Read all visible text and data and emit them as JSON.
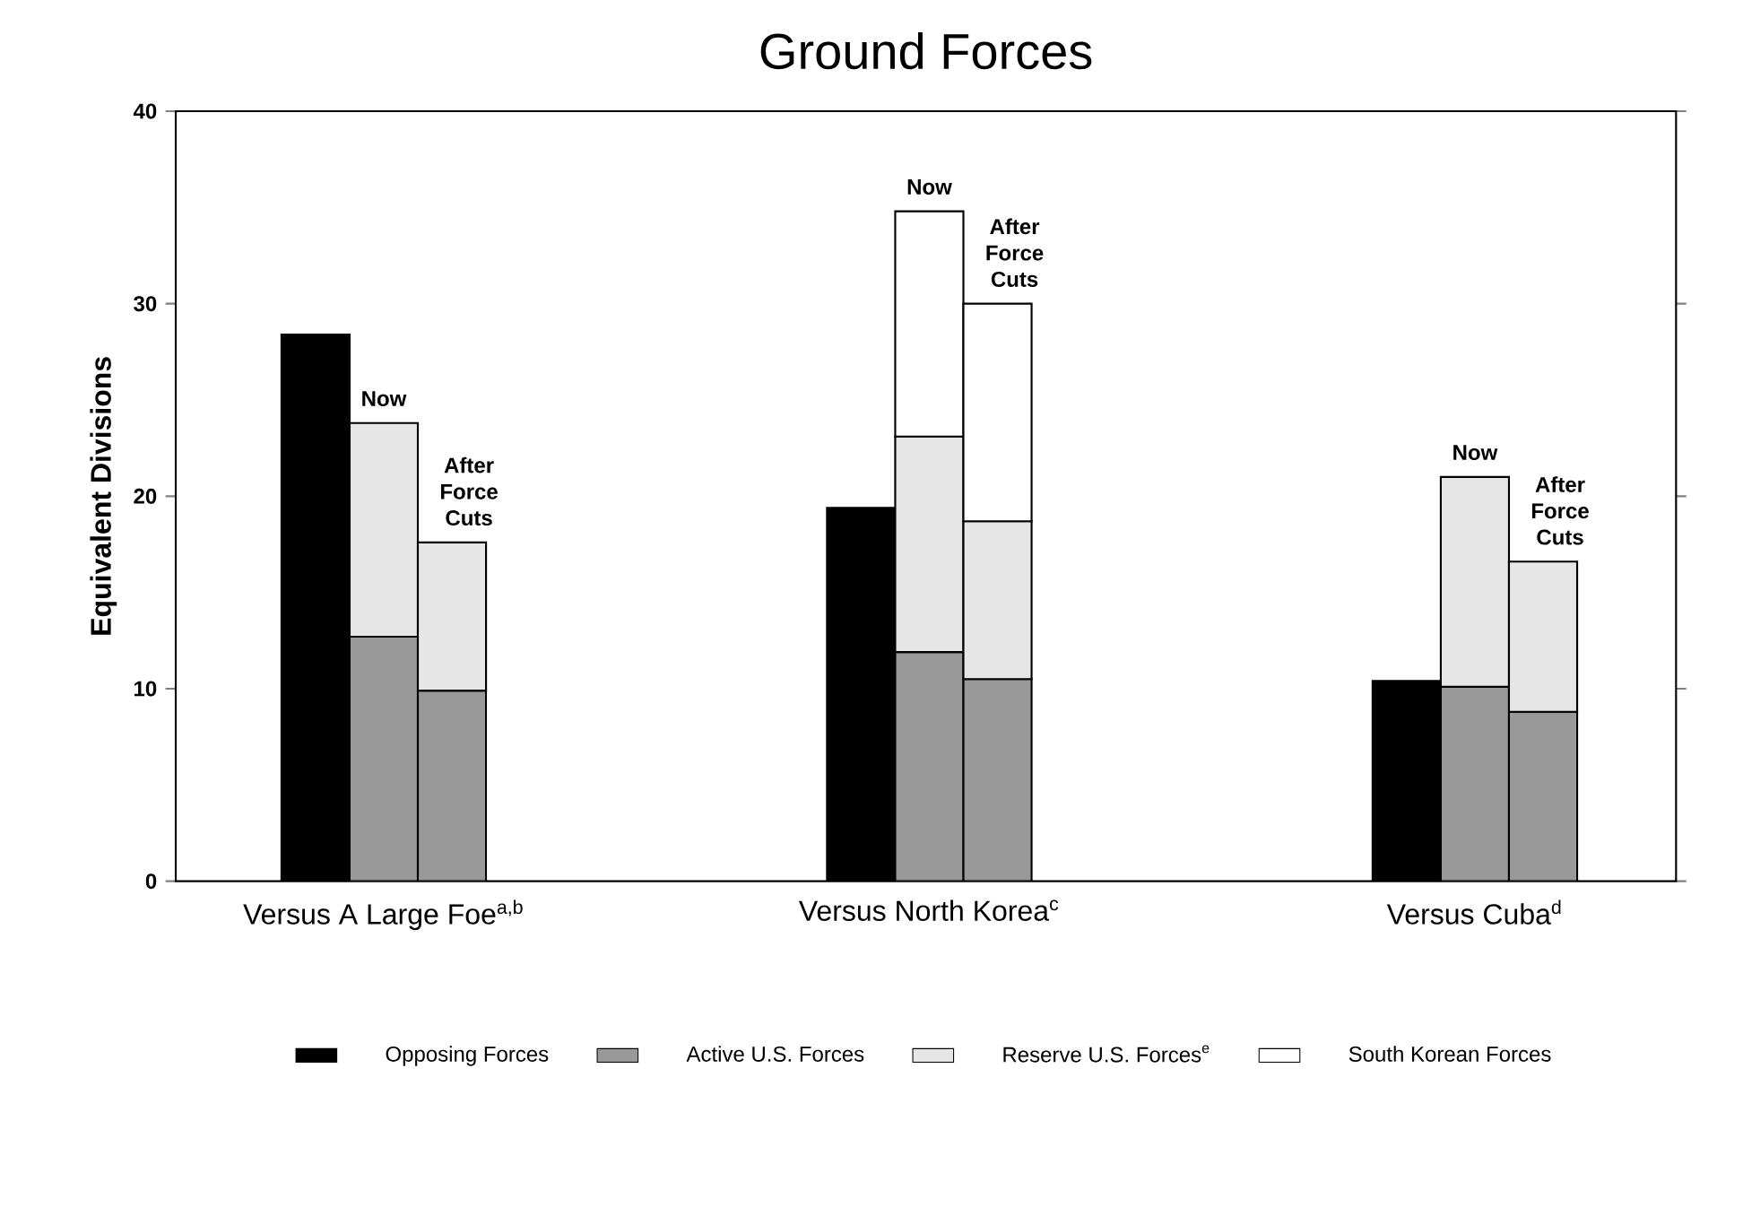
{
  "chart_data": {
    "type": "bar",
    "stacked": true,
    "title": "Ground Forces",
    "ylabel": "Equivalent Divisions",
    "categories": [
      null,
      "Versus A Large Foe$^{a,b}$",
      null,
      null,
      null,
      null,
      null,
      null,
      null,
      "Versus North Korea$^{c}$",
      null,
      null,
      null,
      null,
      null,
      null,
      null,
      "Versus Cuba$^{d}$",
      null
    ],
    "series": [
      {
        "name": "Opposing Forces",
        "color": "#000000",
        "values": [
          28.4,
          null,
          null,
          null,
          null,
          null,
          null,
          null,
          19.4,
          null,
          null,
          null,
          null,
          null,
          null,
          null,
          10.4,
          null,
          null
        ]
      },
      {
        "name": "Active U.S. Forces",
        "color": "#999999",
        "values": [
          null,
          12.7,
          9.9,
          null,
          null,
          null,
          null,
          null,
          null,
          11.9,
          10.5,
          null,
          null,
          null,
          null,
          null,
          null,
          10.1,
          8.8
        ]
      },
      {
        "name": "Reserve U.S. Forces$^{e}$",
        "color": "#e6e6e6",
        "values": [
          null,
          11.1,
          7.7,
          null,
          null,
          null,
          null,
          null,
          null,
          11.2,
          8.2,
          null,
          null,
          null,
          null,
          null,
          null,
          10.9,
          7.8
        ]
      },
      {
        "name": "South Korean Forces",
        "color": "#ffffff",
        "values": [
          null,
          null,
          null,
          null,
          null,
          null,
          null,
          null,
          null,
          11.7,
          11.3,
          null,
          null,
          null,
          null,
          null,
          null,
          null,
          null
        ]
      }
    ],
    "ylim": [
      0,
      40
    ],
    "yticks": [
      0,
      10,
      20,
      30,
      40
    ],
    "legend": "bottom",
    "annotations": [
      "Now",
      "After Force Cuts",
      "Now",
      "After Force Cuts",
      "Now",
      "After Force Cuts"
    ]
  }
}
